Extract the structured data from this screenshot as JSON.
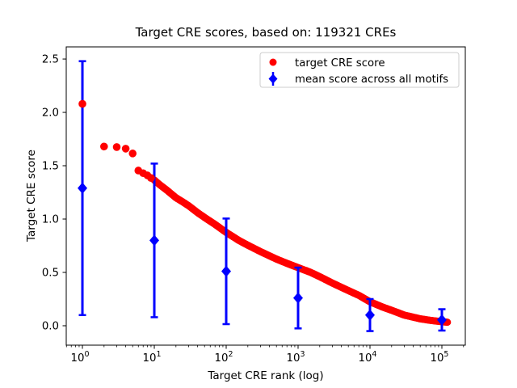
{
  "title": "Target CRE scores, based on: 119321 CREs",
  "chart_data": {
    "type": "scatter",
    "title": "Target CRE scores, based on: 119321 CREs",
    "xlabel": "Target CRE rank (log)",
    "ylabel": "Target CRE score",
    "x_scale": "log",
    "total_cres": 119321,
    "xlim_log10": [
      -0.225,
      5.326
    ],
    "ylim": [
      -0.182,
      2.614
    ],
    "x_tick_exponents": [
      0,
      1,
      2,
      3,
      4,
      5
    ],
    "y_ticks": [
      "0.0",
      "0.5",
      "1.0",
      "1.5",
      "2.0",
      "2.5"
    ],
    "grid": false,
    "legend_position": "upper right",
    "colors": {
      "target_score": "#ff0000",
      "mean_score": "#0000ff",
      "axes": "#000000",
      "legend_border": "#cccccc",
      "background": "#ffffff"
    },
    "series": [
      {
        "name": "target CRE score",
        "marker": "circle",
        "color": "#ff0000",
        "note": "ranked scores of all 119321 CREs, dense monotone curve; anchor points read from plot",
        "anchors": [
          [
            1,
            2.08
          ],
          [
            2,
            1.68
          ],
          [
            3,
            1.675
          ],
          [
            4,
            1.66
          ],
          [
            5,
            1.615
          ],
          [
            6,
            1.455
          ],
          [
            7,
            1.43
          ],
          [
            8,
            1.41
          ],
          [
            9,
            1.385
          ],
          [
            10,
            1.365
          ],
          [
            12,
            1.32
          ],
          [
            15,
            1.27
          ],
          [
            20,
            1.2
          ],
          [
            25,
            1.16
          ],
          [
            30,
            1.125
          ],
          [
            40,
            1.06
          ],
          [
            50,
            1.015
          ],
          [
            70,
            0.95
          ],
          [
            100,
            0.875
          ],
          [
            150,
            0.8
          ],
          [
            200,
            0.755
          ],
          [
            300,
            0.695
          ],
          [
            500,
            0.625
          ],
          [
            700,
            0.585
          ],
          [
            1000,
            0.545
          ],
          [
            1500,
            0.5
          ],
          [
            2000,
            0.46
          ],
          [
            3000,
            0.4
          ],
          [
            5000,
            0.33
          ],
          [
            7000,
            0.285
          ],
          [
            10000,
            0.225
          ],
          [
            15000,
            0.175
          ],
          [
            20000,
            0.145
          ],
          [
            30000,
            0.1
          ],
          [
            50000,
            0.065
          ],
          [
            70000,
            0.05
          ],
          [
            100000,
            0.038
          ],
          [
            119321,
            0.033
          ]
        ]
      },
      {
        "name": "mean score across all motifs",
        "marker": "diamond",
        "color": "#0000ff",
        "points": [
          {
            "rank": 1,
            "mean": 1.29,
            "err": 1.19
          },
          {
            "rank": 10,
            "mean": 0.8,
            "err": 0.72
          },
          {
            "rank": 100,
            "mean": 0.51,
            "err": 0.495
          },
          {
            "rank": 1000,
            "mean": 0.26,
            "err": 0.285
          },
          {
            "rank": 10000,
            "mean": 0.1,
            "err": 0.15
          },
          {
            "rank": 100000,
            "mean": 0.055,
            "err": 0.1
          }
        ]
      }
    ]
  }
}
